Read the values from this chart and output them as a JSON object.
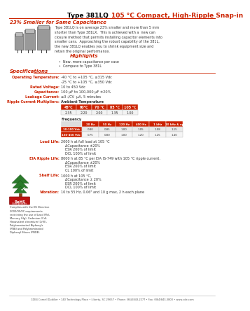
{
  "title_black": "Type 381LQ ",
  "title_red": "105 °C Compact, High-Ripple Snap-in",
  "subtitle": "23% Smaller for Same Capacitance",
  "bg_color": "#ffffff",
  "red_color": "#cc2200",
  "body_text": "Type 381LQ is on average 23% smaller and more than 5 mm\nshorter than Type 381LX.  This is achieved with a  new can\nclosure method that permits installing capacitor elements into\nsmaller cans.  Approaching the robust capability of the 381L,\nthe new 381LQ enables you to shrink equipment size and\nretain the original performance.",
  "highlights_title": "Highlights",
  "highlights": [
    "New, more capacitance per case",
    "Compare to Type 381L"
  ],
  "specs_title": "Specifications",
  "op_temp_label": "Operating Temperature:",
  "op_temp_val": "-40 °C to +105 °C, ≤315 Vdc\n-25 °C to +105 °C, ≥350 Vdc",
  "rated_v_label": "Rated Voltage:",
  "rated_v_val": "10 to 450 Vdc",
  "cap_label": "Capacitance:",
  "cap_val": "100 µF to 100,000 µF ±20%",
  "leak_label": "Leakage Current:",
  "leak_val": "≤3 √CV  µA, 5 minutes",
  "ripple_label": "Ripple Current Multipliers:",
  "amb_title": "Ambient Temperature",
  "amb_temp_headers": [
    "45°C",
    "60°C",
    "70 °C",
    "85 °C",
    "105 °C"
  ],
  "amb_temp_values": [
    "2.35",
    "2.20",
    "2.00",
    "1.35",
    "1.00"
  ],
  "freq_title": "Frequency",
  "freq_headers": [
    "20 Hz",
    "50 Hz",
    "120 Hz",
    "400 Hz",
    "1 kHz",
    "10 kHz & up"
  ],
  "freq_row1_label": "10-100 Vdc",
  "freq_row1": [
    "0.80",
    "0.85",
    "1.00",
    "1.05",
    "1.08",
    "1.15"
  ],
  "freq_row2_label": "160-450 Vdc",
  "freq_row2": [
    "0.75",
    "0.80",
    "1.00",
    "1.20",
    "1.25",
    "1.40"
  ],
  "load_life_label": "Load Life:",
  "load_life_lines": [
    "2000 h at full load at 105 °C",
    "    ΔCapacitance ±20%",
    "    ESR 200% of limit",
    "    DCL 100% of limit"
  ],
  "eia_label": "EIA Ripple Life:",
  "eia_lines": [
    "8000 h at 85 °C per EIA IS-749 with 105 °C ripple current.",
    "    ΔCapacitance ±20%",
    "    ESR 200% of limit",
    "    CL 100% of limit"
  ],
  "shelf_label": "Shelf Life:",
  "shelf_lines": [
    "1000 h at 105 °C,",
    "    ΔCapacitance ± 20%",
    "    ESR 200% of limit",
    "    DCL 100% of limit"
  ],
  "vib_label": "Vibration:",
  "vib_text": "10 to 55 Hz, 0.06\" and 10 g max, 2 h each plane",
  "rohs_text": "Complies with the EU Directive\n2002/95/EC requirements\nrestricting the use of Lead (Pb),\nMercury (Hg), Cadmium (Cd),\nHexavalent chromium (CrVI),\nPolybrominated Biphenyls\n(PBB) and Polybrominated\nDiphenyl Ethers (PBDE).",
  "footer": "CDE4 Cornell Dubilier • 140 Technology Place • Liberty, SC 29657 • Phone: (864)843-2277 • Fax: (864)843-3800 • www.cde.com"
}
